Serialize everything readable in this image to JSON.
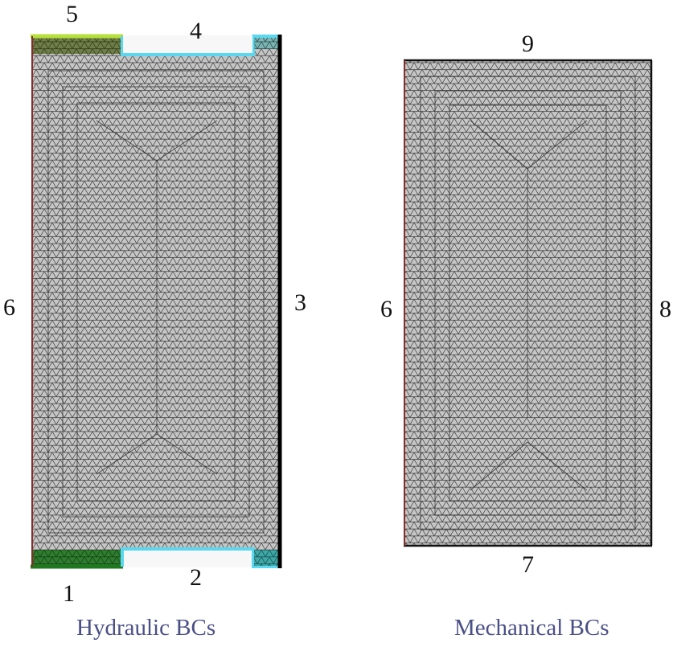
{
  "hydraulic": {
    "caption": "Hydraulic BCs",
    "boundary_labels": {
      "b1": "1",
      "b2": "2",
      "b3": "3",
      "b4": "4",
      "b5": "5",
      "b6": "6"
    }
  },
  "mechanical": {
    "caption": "Mechanical BCs",
    "boundary_labels": {
      "b6": "6",
      "b7": "7",
      "b8": "8",
      "b9": "9"
    }
  },
  "colors": {
    "mesh_fill": "#c6c6c6",
    "mesh_line": "#3a3a3a",
    "boundary_1": "#1f7a1f",
    "boundary_2_4": "#5ad8f0",
    "boundary_3": "#000000",
    "boundary_5": "#b6e03c",
    "boundary_6": "#8b2a2a",
    "caption": "#4a4f86"
  }
}
